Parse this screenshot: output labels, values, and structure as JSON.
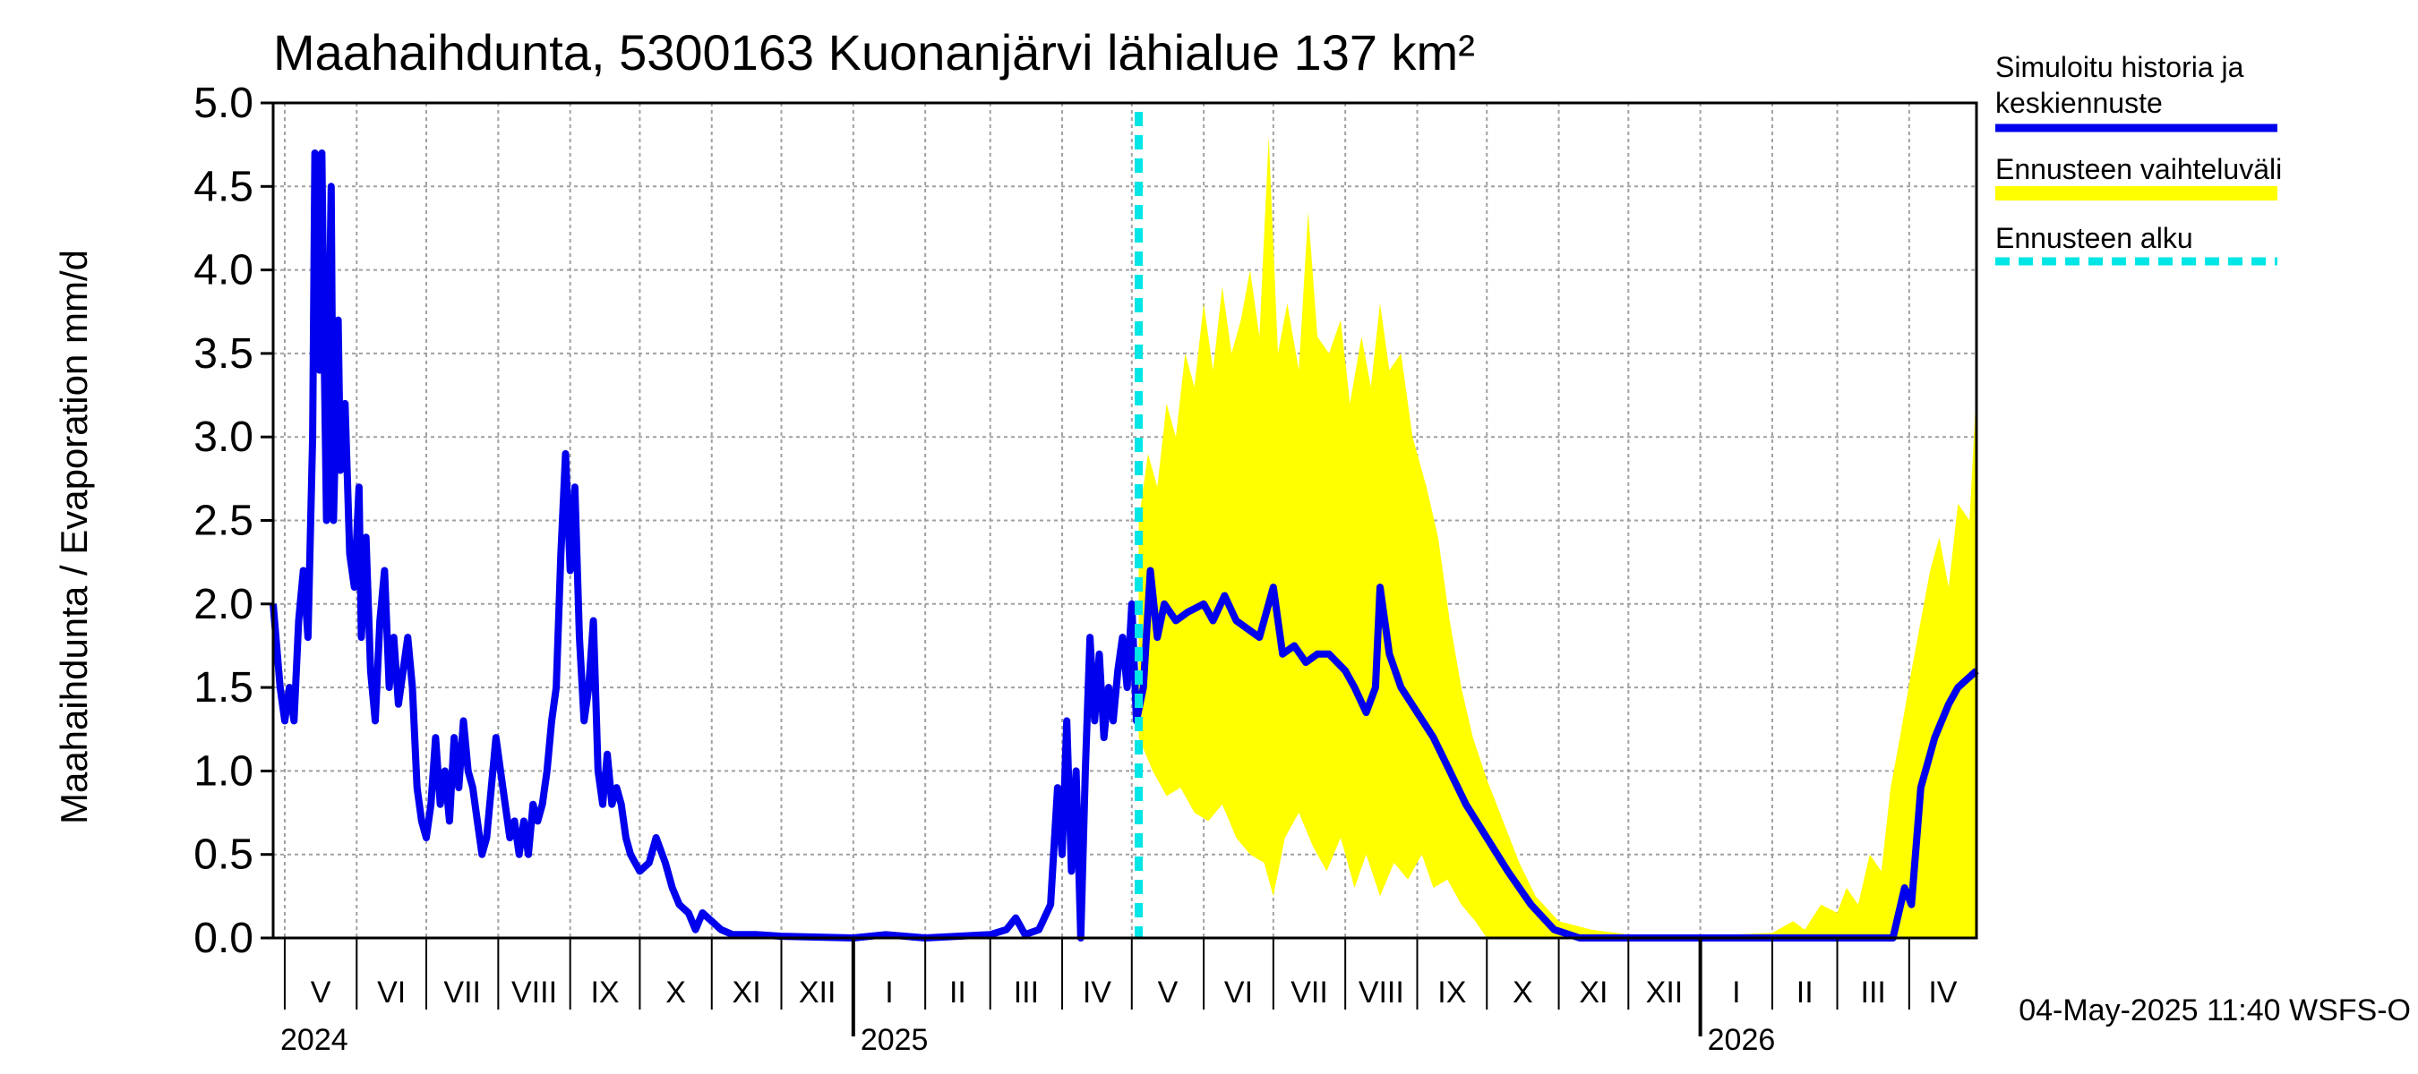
{
  "chart_data": {
    "type": "area",
    "title": "Maahaihdunta, 5300163 Kuonanjärvi lähialue 137 km²",
    "ylabel": "Maahaihdunta / Evaporation   mm/d",
    "xlabel": "",
    "ylim": [
      0,
      5.0
    ],
    "yticks": [
      "0.0",
      "0.5",
      "1.0",
      "1.5",
      "2.0",
      "2.5",
      "3.0",
      "3.5",
      "4.0",
      "4.5",
      "5.0"
    ],
    "x_range": [
      "2024-04-26",
      "2026-04-30"
    ],
    "month_labels": [
      "V",
      "VI",
      "VII",
      "VIII",
      "IX",
      "X",
      "XI",
      "XII",
      "I",
      "II",
      "III",
      "IV",
      "V",
      "VI",
      "VII",
      "VIII",
      "IX",
      "X",
      "XI",
      "XII",
      "I",
      "II",
      "III",
      "IV"
    ],
    "year_labels": [
      "2024",
      "2025",
      "2026"
    ],
    "grid": true,
    "legend_position": "right",
    "forecast_start": "2025-05-04",
    "timestamp": "04-May-2025 11:40 WSFS-O",
    "colors": {
      "history": "#0000ee",
      "range": "#ffff00",
      "forecast_start": "#00e5e5",
      "grid": "#a0a0a0"
    },
    "series": [
      {
        "name": "Simuloitu historia ja keskiennuste",
        "points": [
          [
            "2024-04-26",
            2.0
          ],
          [
            "2024-04-29",
            1.5
          ],
          [
            "2024-05-01",
            1.3
          ],
          [
            "2024-05-03",
            1.5
          ],
          [
            "2024-05-05",
            1.3
          ],
          [
            "2024-05-07",
            1.9
          ],
          [
            "2024-05-09",
            2.2
          ],
          [
            "2024-05-11",
            1.8
          ],
          [
            "2024-05-13",
            3.0
          ],
          [
            "2024-05-14",
            4.7
          ],
          [
            "2024-05-16",
            3.4
          ],
          [
            "2024-05-17",
            4.7
          ],
          [
            "2024-05-18",
            3.5
          ],
          [
            "2024-05-19",
            2.5
          ],
          [
            "2024-05-21",
            4.5
          ],
          [
            "2024-05-22",
            2.5
          ],
          [
            "2024-05-24",
            3.7
          ],
          [
            "2024-05-25",
            2.8
          ],
          [
            "2024-05-27",
            3.2
          ],
          [
            "2024-05-29",
            2.3
          ],
          [
            "2024-05-31",
            2.1
          ],
          [
            "2024-06-02",
            2.7
          ],
          [
            "2024-06-03",
            1.8
          ],
          [
            "2024-06-05",
            2.4
          ],
          [
            "2024-06-07",
            1.6
          ],
          [
            "2024-06-09",
            1.3
          ],
          [
            "2024-06-11",
            1.9
          ],
          [
            "2024-06-13",
            2.2
          ],
          [
            "2024-06-15",
            1.5
          ],
          [
            "2024-06-17",
            1.8
          ],
          [
            "2024-06-19",
            1.4
          ],
          [
            "2024-06-21",
            1.6
          ],
          [
            "2024-06-23",
            1.8
          ],
          [
            "2024-06-25",
            1.5
          ],
          [
            "2024-06-27",
            0.9
          ],
          [
            "2024-06-29",
            0.7
          ],
          [
            "2024-07-01",
            0.6
          ],
          [
            "2024-07-03",
            0.8
          ],
          [
            "2024-07-05",
            1.2
          ],
          [
            "2024-07-07",
            0.8
          ],
          [
            "2024-07-09",
            1.0
          ],
          [
            "2024-07-11",
            0.7
          ],
          [
            "2024-07-13",
            1.2
          ],
          [
            "2024-07-15",
            0.9
          ],
          [
            "2024-07-17",
            1.3
          ],
          [
            "2024-07-19",
            1.0
          ],
          [
            "2024-07-21",
            0.9
          ],
          [
            "2024-07-23",
            0.7
          ],
          [
            "2024-07-25",
            0.5
          ],
          [
            "2024-07-27",
            0.6
          ],
          [
            "2024-07-29",
            0.9
          ],
          [
            "2024-07-31",
            1.2
          ],
          [
            "2024-08-02",
            1.0
          ],
          [
            "2024-08-04",
            0.8
          ],
          [
            "2024-08-06",
            0.6
          ],
          [
            "2024-08-08",
            0.7
          ],
          [
            "2024-08-10",
            0.5
          ],
          [
            "2024-08-12",
            0.7
          ],
          [
            "2024-08-14",
            0.5
          ],
          [
            "2024-08-16",
            0.8
          ],
          [
            "2024-08-18",
            0.7
          ],
          [
            "2024-08-20",
            0.8
          ],
          [
            "2024-08-22",
            1.0
          ],
          [
            "2024-08-24",
            1.3
          ],
          [
            "2024-08-26",
            1.5
          ],
          [
            "2024-08-28",
            2.3
          ],
          [
            "2024-08-30",
            2.9
          ],
          [
            "2024-09-01",
            2.2
          ],
          [
            "2024-09-03",
            2.7
          ],
          [
            "2024-09-05",
            1.8
          ],
          [
            "2024-09-07",
            1.3
          ],
          [
            "2024-09-09",
            1.5
          ],
          [
            "2024-09-11",
            1.9
          ],
          [
            "2024-09-13",
            1.0
          ],
          [
            "2024-09-15",
            0.8
          ],
          [
            "2024-09-17",
            1.1
          ],
          [
            "2024-09-19",
            0.8
          ],
          [
            "2024-09-21",
            0.9
          ],
          [
            "2024-09-23",
            0.8
          ],
          [
            "2024-09-25",
            0.6
          ],
          [
            "2024-09-27",
            0.5
          ],
          [
            "2024-10-01",
            0.4
          ],
          [
            "2024-10-05",
            0.45
          ],
          [
            "2024-10-08",
            0.6
          ],
          [
            "2024-10-12",
            0.45
          ],
          [
            "2024-10-15",
            0.3
          ],
          [
            "2024-10-18",
            0.2
          ],
          [
            "2024-10-22",
            0.15
          ],
          [
            "2024-10-25",
            0.05
          ],
          [
            "2024-10-28",
            0.15
          ],
          [
            "2024-11-01",
            0.1
          ],
          [
            "2024-11-05",
            0.05
          ],
          [
            "2024-11-10",
            0.02
          ],
          [
            "2024-11-20",
            0.02
          ],
          [
            "2024-12-01",
            0.01
          ],
          [
            "2025-01-01",
            0.0
          ],
          [
            "2025-01-15",
            0.02
          ],
          [
            "2025-02-01",
            0.0
          ],
          [
            "2025-03-01",
            0.02
          ],
          [
            "2025-03-08",
            0.05
          ],
          [
            "2025-03-12",
            0.12
          ],
          [
            "2025-03-16",
            0.02
          ],
          [
            "2025-03-22",
            0.05
          ],
          [
            "2025-03-27",
            0.2
          ],
          [
            "2025-03-30",
            0.9
          ],
          [
            "2025-04-01",
            0.5
          ],
          [
            "2025-04-03",
            1.3
          ],
          [
            "2025-04-05",
            0.4
          ],
          [
            "2025-04-07",
            1.0
          ],
          [
            "2025-04-09",
            0.0
          ],
          [
            "2025-04-11",
            1.0
          ],
          [
            "2025-04-13",
            1.8
          ],
          [
            "2025-04-15",
            1.3
          ],
          [
            "2025-04-17",
            1.7
          ],
          [
            "2025-04-19",
            1.2
          ],
          [
            "2025-04-21",
            1.5
          ],
          [
            "2025-04-23",
            1.3
          ],
          [
            "2025-04-25",
            1.6
          ],
          [
            "2025-04-27",
            1.8
          ],
          [
            "2025-04-29",
            1.5
          ],
          [
            "2025-05-01",
            2.0
          ],
          [
            "2025-05-03",
            1.3
          ],
          [
            "2025-05-06",
            1.5
          ],
          [
            "2025-05-09",
            2.2
          ],
          [
            "2025-05-12",
            1.8
          ],
          [
            "2025-05-15",
            2.0
          ],
          [
            "2025-05-20",
            1.9
          ],
          [
            "2025-05-25",
            1.95
          ],
          [
            "2025-06-01",
            2.0
          ],
          [
            "2025-06-05",
            1.9
          ],
          [
            "2025-06-10",
            2.05
          ],
          [
            "2025-06-15",
            1.9
          ],
          [
            "2025-06-20",
            1.85
          ],
          [
            "2025-06-25",
            1.8
          ],
          [
            "2025-07-01",
            2.1
          ],
          [
            "2025-07-05",
            1.7
          ],
          [
            "2025-07-10",
            1.75
          ],
          [
            "2025-07-15",
            1.65
          ],
          [
            "2025-07-20",
            1.7
          ],
          [
            "2025-07-25",
            1.7
          ],
          [
            "2025-08-01",
            1.6
          ],
          [
            "2025-08-05",
            1.5
          ],
          [
            "2025-08-10",
            1.35
          ],
          [
            "2025-08-14",
            1.5
          ],
          [
            "2025-08-16",
            2.1
          ],
          [
            "2025-08-20",
            1.7
          ],
          [
            "2025-08-25",
            1.5
          ],
          [
            "2025-09-01",
            1.35
          ],
          [
            "2025-09-08",
            1.2
          ],
          [
            "2025-09-15",
            1.0
          ],
          [
            "2025-09-22",
            0.8
          ],
          [
            "2025-10-01",
            0.6
          ],
          [
            "2025-10-10",
            0.4
          ],
          [
            "2025-10-20",
            0.2
          ],
          [
            "2025-10-30",
            0.05
          ],
          [
            "2025-11-10",
            0.0
          ],
          [
            "2026-01-01",
            0.0
          ],
          [
            "2026-03-01",
            0.0
          ],
          [
            "2026-03-25",
            0.0
          ],
          [
            "2026-03-30",
            0.3
          ],
          [
            "2026-04-02",
            0.2
          ],
          [
            "2026-04-06",
            0.9
          ],
          [
            "2026-04-12",
            1.2
          ],
          [
            "2026-04-18",
            1.4
          ],
          [
            "2026-04-22",
            1.5
          ],
          [
            "2026-04-30",
            1.6
          ]
        ]
      },
      {
        "name": "Ennusteen vaihteluväli",
        "upper": [
          [
            "2025-05-04",
            2.5
          ],
          [
            "2025-05-08",
            2.9
          ],
          [
            "2025-05-12",
            2.7
          ],
          [
            "2025-05-16",
            3.2
          ],
          [
            "2025-05-20",
            3.0
          ],
          [
            "2025-05-24",
            3.5
          ],
          [
            "2025-05-28",
            3.3
          ],
          [
            "2025-06-01",
            3.8
          ],
          [
            "2025-06-05",
            3.4
          ],
          [
            "2025-06-09",
            3.9
          ],
          [
            "2025-06-13",
            3.5
          ],
          [
            "2025-06-17",
            3.7
          ],
          [
            "2025-06-21",
            4.0
          ],
          [
            "2025-06-25",
            3.6
          ],
          [
            "2025-06-29",
            4.8
          ],
          [
            "2025-07-03",
            3.5
          ],
          [
            "2025-07-07",
            3.8
          ],
          [
            "2025-07-12",
            3.4
          ],
          [
            "2025-07-16",
            4.35
          ],
          [
            "2025-07-20",
            3.6
          ],
          [
            "2025-07-25",
            3.5
          ],
          [
            "2025-07-30",
            3.7
          ],
          [
            "2025-08-03",
            3.2
          ],
          [
            "2025-08-08",
            3.6
          ],
          [
            "2025-08-12",
            3.3
          ],
          [
            "2025-08-16",
            3.8
          ],
          [
            "2025-08-20",
            3.4
          ],
          [
            "2025-08-25",
            3.5
          ],
          [
            "2025-08-30",
            3.0
          ],
          [
            "2025-09-05",
            2.7
          ],
          [
            "2025-09-10",
            2.4
          ],
          [
            "2025-09-15",
            1.9
          ],
          [
            "2025-09-20",
            1.5
          ],
          [
            "2025-09-25",
            1.2
          ],
          [
            "2025-10-01",
            0.95
          ],
          [
            "2025-10-08",
            0.7
          ],
          [
            "2025-10-15",
            0.45
          ],
          [
            "2025-10-22",
            0.25
          ],
          [
            "2025-11-01",
            0.1
          ],
          [
            "2025-11-15",
            0.05
          ],
          [
            "2025-12-01",
            0.02
          ],
          [
            "2026-01-15",
            0.02
          ],
          [
            "2026-02-01",
            0.03
          ],
          [
            "2026-02-10",
            0.1
          ],
          [
            "2026-02-15",
            0.05
          ],
          [
            "2026-02-22",
            0.2
          ],
          [
            "2026-03-01",
            0.15
          ],
          [
            "2026-03-05",
            0.3
          ],
          [
            "2026-03-10",
            0.2
          ],
          [
            "2026-03-15",
            0.5
          ],
          [
            "2026-03-20",
            0.4
          ],
          [
            "2026-03-24",
            0.9
          ],
          [
            "2026-03-28",
            1.2
          ],
          [
            "2026-04-02",
            1.6
          ],
          [
            "2026-04-06",
            1.9
          ],
          [
            "2026-04-10",
            2.2
          ],
          [
            "2026-04-14",
            2.4
          ],
          [
            "2026-04-18",
            2.1
          ],
          [
            "2026-04-22",
            2.6
          ],
          [
            "2026-04-27",
            2.5
          ],
          [
            "2026-04-30",
            3.3
          ]
        ],
        "lower": [
          [
            "2025-05-04",
            1.2
          ],
          [
            "2025-05-10",
            1.0
          ],
          [
            "2025-05-16",
            0.85
          ],
          [
            "2025-05-22",
            0.9
          ],
          [
            "2025-05-28",
            0.75
          ],
          [
            "2025-06-03",
            0.7
          ],
          [
            "2025-06-09",
            0.8
          ],
          [
            "2025-06-15",
            0.6
          ],
          [
            "2025-06-21",
            0.5
          ],
          [
            "2025-06-27",
            0.45
          ],
          [
            "2025-07-01",
            0.25
          ],
          [
            "2025-07-06",
            0.6
          ],
          [
            "2025-07-12",
            0.75
          ],
          [
            "2025-07-18",
            0.55
          ],
          [
            "2025-07-24",
            0.4
          ],
          [
            "2025-07-30",
            0.6
          ],
          [
            "2025-08-05",
            0.3
          ],
          [
            "2025-08-10",
            0.5
          ],
          [
            "2025-08-16",
            0.25
          ],
          [
            "2025-08-22",
            0.45
          ],
          [
            "2025-08-28",
            0.35
          ],
          [
            "2025-09-03",
            0.5
          ],
          [
            "2025-09-08",
            0.3
          ],
          [
            "2025-09-14",
            0.35
          ],
          [
            "2025-09-20",
            0.2
          ],
          [
            "2025-09-26",
            0.1
          ],
          [
            "2025-10-01",
            0.0
          ],
          [
            "2026-04-30",
            0.0
          ]
        ]
      },
      {
        "name": "Ennusteen alku"
      }
    ]
  }
}
